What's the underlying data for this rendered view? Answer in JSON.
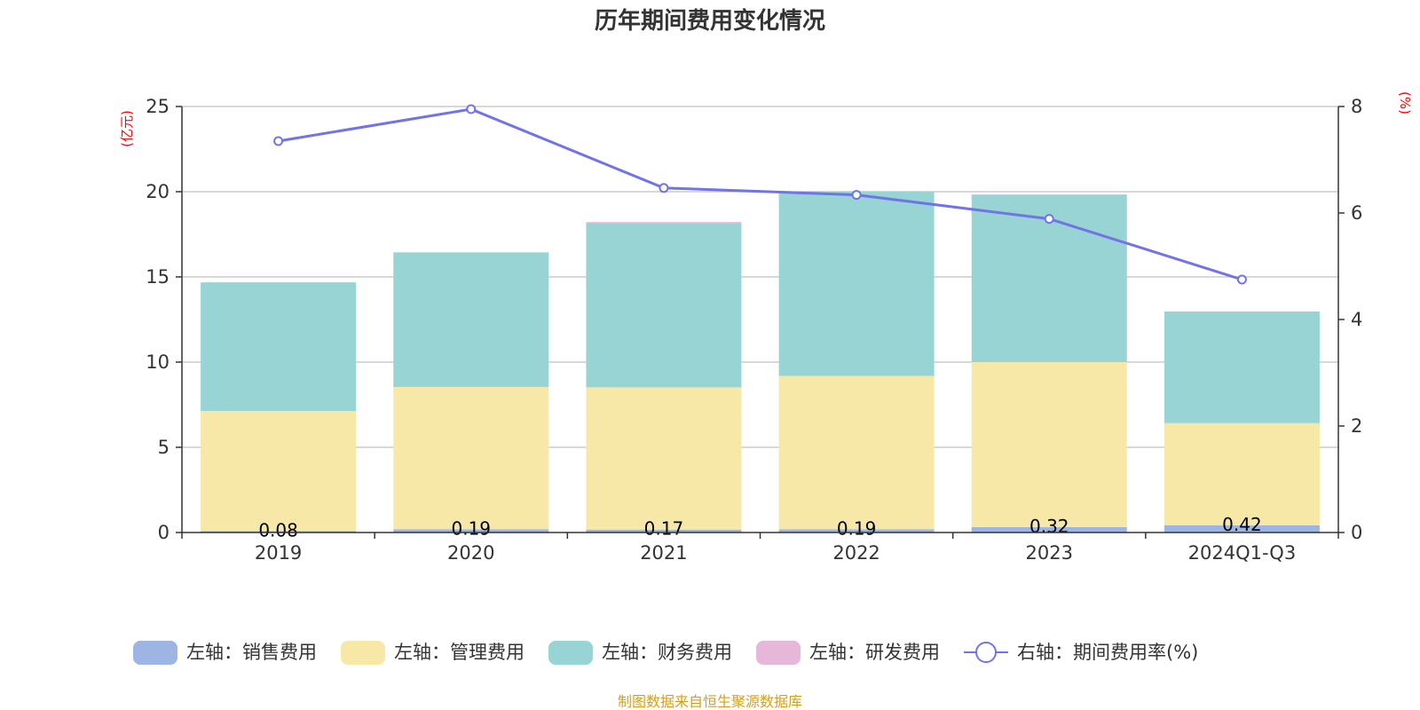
{
  "chart_data": {
    "type": "bar",
    "title": "历年期间费用变化情况",
    "categories": [
      "2019",
      "2020",
      "2021",
      "2022",
      "2023",
      "2024Q1-Q3"
    ],
    "left_axis": {
      "unit": "(亿元)",
      "ylim": [
        0,
        25
      ],
      "ticks": [
        "0",
        "5",
        "10",
        "15",
        "20",
        "25"
      ]
    },
    "right_axis": {
      "unit": "(%)",
      "ylim": [
        0,
        8
      ],
      "ticks": [
        "0",
        "2",
        "4",
        "6",
        "8"
      ]
    },
    "series": [
      {
        "name": "左轴：销售费用",
        "axis": "left",
        "color": "#9db5e3",
        "values": [
          0.08,
          0.19,
          0.17,
          0.19,
          0.32,
          0.42
        ]
      },
      {
        "name": "左轴：管理费用",
        "axis": "left",
        "color": "#f7e8a8",
        "values": [
          7.05,
          8.35,
          8.35,
          9.0,
          9.68,
          6.0
        ]
      },
      {
        "name": "左轴：财务费用",
        "axis": "left",
        "color": "#98d4d4",
        "values": [
          7.55,
          7.9,
          9.65,
          10.82,
          9.8,
          6.55
        ]
      },
      {
        "name": "左轴：研发费用",
        "axis": "left",
        "color": "#e6b7d9",
        "values": [
          0.0,
          0.0,
          0.05,
          0.0,
          0.05,
          0.0
        ]
      },
      {
        "name": "右轴：期间费用率(%)",
        "axis": "right",
        "type": "line",
        "color": "#7373e8",
        "values": [
          7.35,
          7.95,
          6.47,
          6.34,
          5.89,
          4.75
        ]
      }
    ],
    "bar_labels": [
      "0.08",
      "0.19",
      "0.17",
      "0.19",
      "0.32",
      "0.42"
    ],
    "legend_position": "bottom",
    "grid": true
  },
  "footer": {
    "source": "制图数据来自恒生聚源数据库"
  }
}
